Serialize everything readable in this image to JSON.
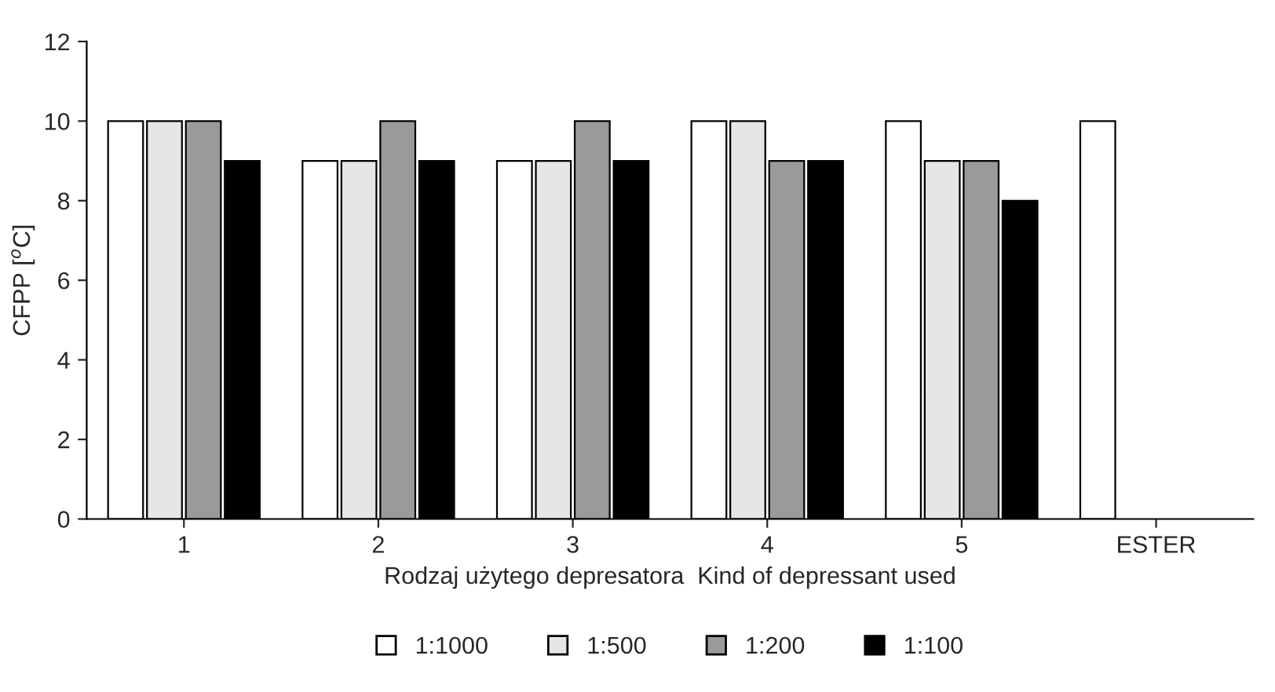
{
  "chart_data": {
    "type": "bar",
    "xlabel": "Rodzaj użytego depresatora  Kind of depressant used",
    "ylabel": "CFPP [$^{o}$C]",
    "categories": [
      "1",
      "2",
      "3",
      "4",
      "5",
      "ESTER"
    ],
    "series": [
      {
        "name": "1:1000",
        "color": "#ffffff",
        "values": [
          10,
          9,
          9,
          10,
          10,
          10
        ]
      },
      {
        "name": "1:500",
        "color": "#e6e6e6",
        "values": [
          10,
          9,
          9,
          10,
          9,
          null
        ]
      },
      {
        "name": "1:200",
        "color": "#9a9a9a",
        "values": [
          10,
          10,
          10,
          9,
          9,
          null
        ]
      },
      {
        "name": "1:100",
        "color": "#000000",
        "values": [
          9,
          9,
          9,
          9,
          8,
          null
        ]
      }
    ],
    "ylim": [
      0,
      12
    ],
    "yticks": [
      0,
      2,
      4,
      6,
      8,
      10,
      12
    ],
    "grid": false,
    "legend": "bottom"
  }
}
